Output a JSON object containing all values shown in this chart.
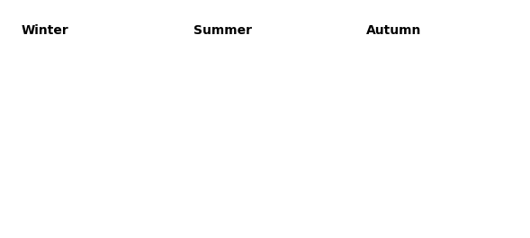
{
  "panels": [
    "Winter",
    "Summer",
    "Autumn"
  ],
  "sea_color": "#b8b4cc",
  "land_color": "#ece8c8",
  "inner_sea_color": "#b0a8c4",
  "border_color": "#222222",
  "sub_border_color": "#888888",
  "colors": {
    "orange": "#e07818",
    "yellow": "#e8d020",
    "red": "#cc0000"
  },
  "extent": [
    3,
    32,
    54,
    72
  ],
  "figsize": [
    5.89,
    2.65
  ],
  "dpi": 100,
  "panel_border_color": "#888888"
}
